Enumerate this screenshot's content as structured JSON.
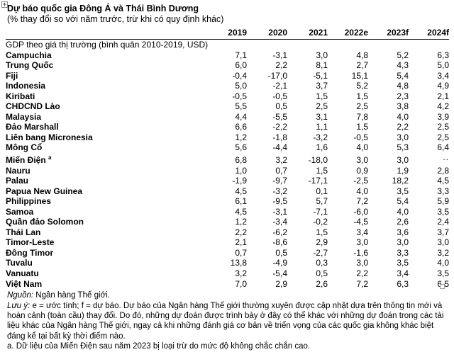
{
  "document": {
    "title": "Dự báo quốc gia Đông Á và Thái Bình Dương",
    "subtitle": "(% thay đổi so với năm trước, trừ khi có quy định khác)"
  },
  "table": {
    "columns": [
      "2019",
      "2020",
      "2021",
      "2022e",
      "2023f",
      "2024f"
    ],
    "section_label": "GDP theo giá thị trường (bình quân 2010-2019, USD)",
    "rows": [
      {
        "name": "Campuchia",
        "values": [
          "7,1",
          "-3,1",
          "3,0",
          "4,8",
          "5,2",
          "6,3"
        ]
      },
      {
        "name": "Trung Quốc",
        "values": [
          "6,0",
          "2,2",
          "8,1",
          "2,7",
          "4,3",
          "5,0"
        ]
      },
      {
        "name": "Fiji",
        "values": [
          "-0,4",
          "-17,0",
          "-5,1",
          "15,1",
          "5,4",
          "3,4"
        ]
      },
      {
        "name": "Indonesia",
        "values": [
          "5,0",
          "-2,1",
          "3,7",
          "5,2",
          "4,8",
          "4,9"
        ]
      },
      {
        "name": "Kiribati",
        "values": [
          "-0,5",
          "-0,5",
          "1,5",
          "1,5",
          "2,3",
          "2,1"
        ]
      },
      {
        "name": "CHDCND Lào",
        "values": [
          "5,5",
          "0,5",
          "2,5",
          "2,5",
          "3,8",
          "4,2"
        ]
      },
      {
        "name": "Malaysia",
        "values": [
          "4,4",
          "-5,5",
          "3,1",
          "7,8",
          "4,0",
          "3,9"
        ]
      },
      {
        "name": "Đảo Marshall",
        "values": [
          "6,6",
          "-2,2",
          "1,1",
          "1,5",
          "2,2",
          "2,5"
        ]
      },
      {
        "name": "Liên bang Micronesia",
        "values": [
          "1,2",
          "-1,8",
          "-3,2",
          "-0,5",
          "3,0",
          "2,5"
        ]
      },
      {
        "name": "Mông Cổ",
        "values": [
          "5,6",
          "-4,4",
          "1,6",
          "4,0",
          "5,3",
          "6,4"
        ]
      },
      {
        "name": "Miến Điện",
        "sup": "a",
        "values": [
          "6,8",
          "3,2",
          "-18,0",
          "3,0",
          "3,0",
          ".."
        ]
      },
      {
        "name": "Nauru",
        "values": [
          "1,0",
          "0,7",
          "1,5",
          "0,9",
          "1,9",
          "2,8"
        ]
      },
      {
        "name": "Palau",
        "values": [
          "-1,9",
          "-9,7",
          "-17,1",
          "-2,5",
          "18,2",
          "4,5"
        ]
      },
      {
        "name": "Papua New Guinea",
        "values": [
          "4,5",
          "-3,2",
          "0,1",
          "4,0",
          "3,5",
          "3,3"
        ]
      },
      {
        "name": "Philippines",
        "values": [
          "6,1",
          "-9,5",
          "5,7",
          "7,2",
          "5,4",
          "5,9"
        ]
      },
      {
        "name": "Samoa",
        "values": [
          "4,5",
          "-3,1",
          "-7,1",
          "-6,0",
          "4,0",
          "3,5"
        ]
      },
      {
        "name": "Quần đảo Solomon",
        "values": [
          "1,2",
          "-3,4",
          "-0,2",
          "-4,5",
          "2,6",
          "2,4"
        ]
      },
      {
        "name": "Thái Lan",
        "values": [
          "2,2",
          "-6,2",
          "1,5",
          "3,4",
          "3,6",
          "3,7"
        ]
      },
      {
        "name": "Timor-Leste",
        "values": [
          "2,1",
          "-8,6",
          "2,9",
          "3,0",
          "3,0",
          "3,0"
        ]
      },
      {
        "name": "Đông Timor",
        "values": [
          "0,7",
          "0,5",
          "-2,7",
          "-1,6",
          "3,3",
          "3,2"
        ]
      },
      {
        "name": "Tuvalu",
        "values": [
          "13,8",
          "-4,9",
          "0,3",
          "3,0",
          "3,5",
          "4,0"
        ]
      },
      {
        "name": "Vanuatu",
        "values": [
          "3,2",
          "-5,4",
          "0,5",
          "2,2",
          "3,4",
          "3,5"
        ]
      },
      {
        "name": "Việt Nam",
        "values": [
          "7,0",
          "2,9",
          "2,6",
          "7,2",
          "6,3",
          "6,5"
        ]
      }
    ],
    "no_data_symbol": ".."
  },
  "notes": {
    "source_label": "Nguồn:",
    "source_text": "Ngân hàng Thế giới.",
    "note_label": "Lưu ý:",
    "note_text": "e = ước tính; f = dự báo. Dự báo của Ngân hàng Thế giới thường xuyên được cập nhật dựa trên thông tin mới và hoàn cảnh (toàn cầu) thay đổi. Do đó, những dự đoán được trình bày ở đây có thể khác với những dự đoán trong các tài liệu khác của Ngân hàng Thế giới, ngay cả khi những đánh giá cơ bản về triển vọng của các quốc gia không khác biệt đáng kể tại bất kỳ thời điểm nào.",
    "footnote_a": "a. Dữ liệu của Miến Điện sau năm 2023 bị loại trừ do mức độ không chắc chắn cao."
  },
  "icons": {
    "table_move_handle": "plus-in-square",
    "table_resize_handle": "hollow-square"
  },
  "colors": {
    "text": "#000000",
    "background": "#ffffff",
    "header_rule": "#111111",
    "handle_border": "#8c8c8c"
  }
}
